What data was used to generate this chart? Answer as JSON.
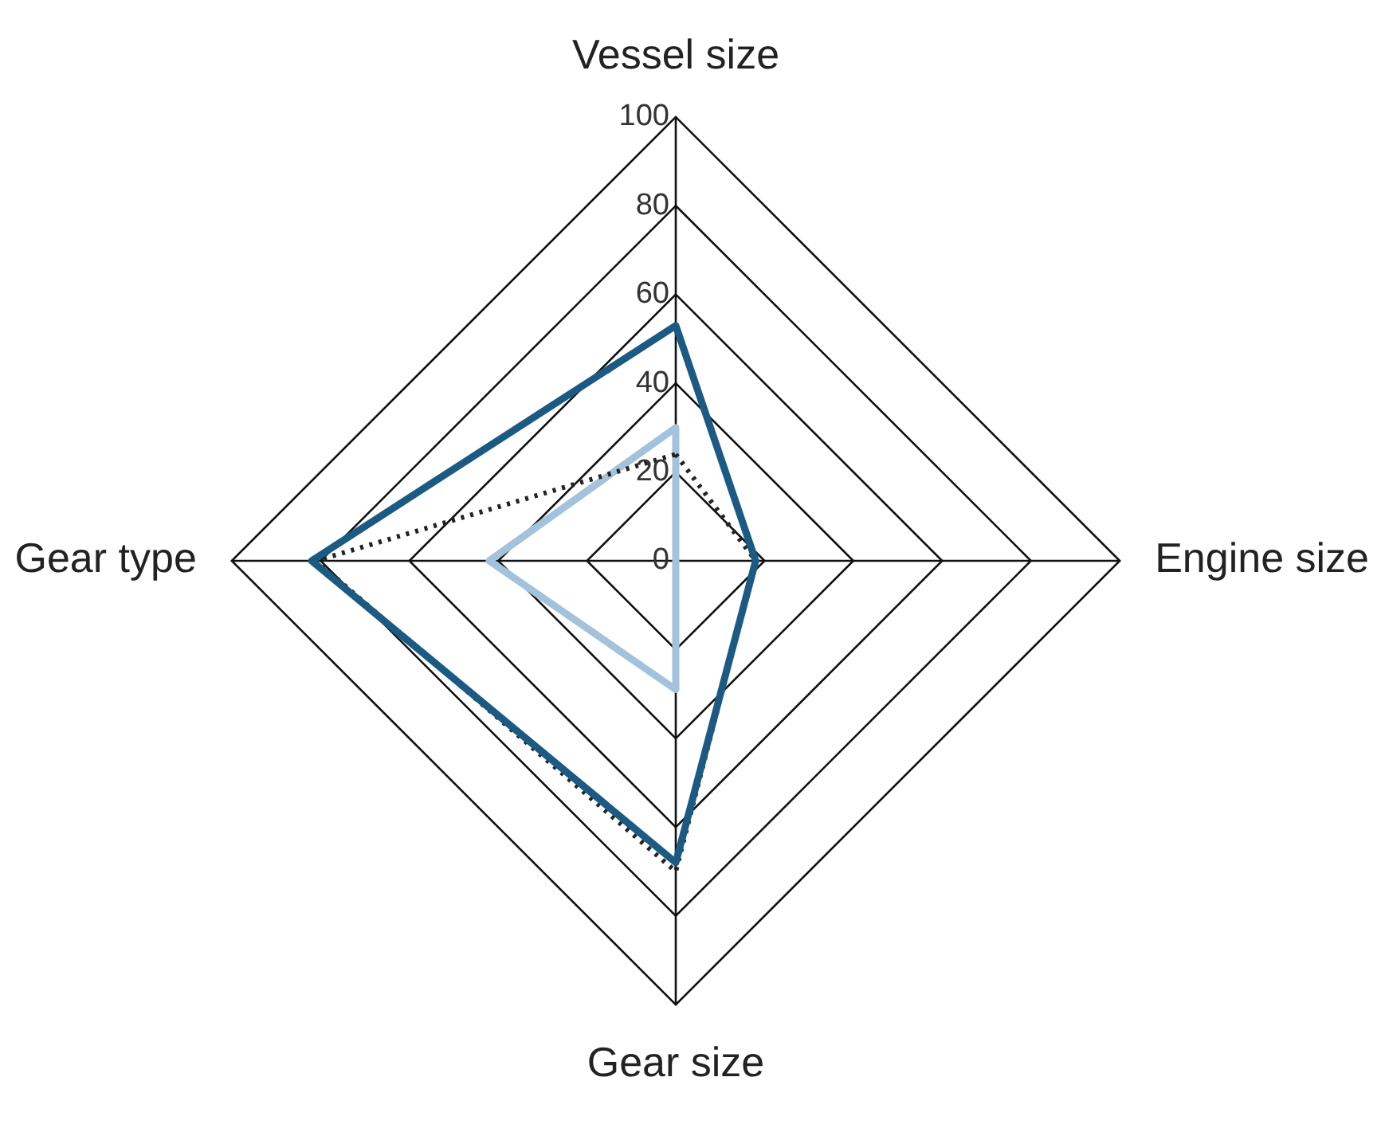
{
  "chart_data": {
    "type": "radar",
    "categories": [
      "Vessel size",
      "Engine size",
      "Gear size",
      "Gear type"
    ],
    "ylim": [
      0,
      100
    ],
    "yticks": [
      0,
      20,
      40,
      60,
      80,
      100
    ],
    "legend": false,
    "marker": "none",
    "series": [
      {
        "color": "#1b5a82",
        "values": [
          53,
          18,
          68,
          82
        ],
        "line_style": "solid"
      },
      {
        "color": "#222222",
        "values": [
          24,
          18,
          70,
          81
        ],
        "line_style": "dotted"
      },
      {
        "color": "#a3c2dc",
        "values": [
          30,
          0,
          29,
          42
        ],
        "line_style": "solid"
      }
    ]
  }
}
